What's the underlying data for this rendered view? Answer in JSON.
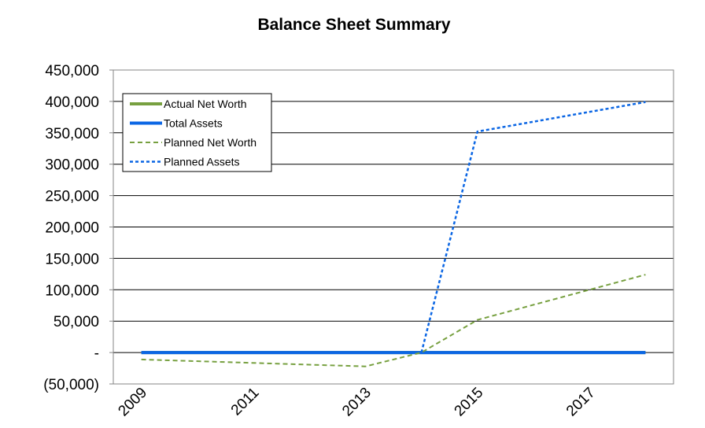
{
  "chart_data": {
    "type": "line",
    "title": "Balance Sheet Summary",
    "xlabel": "",
    "ylabel": "",
    "x": [
      2009,
      2010,
      2011,
      2012,
      2013,
      2014,
      2015,
      2016,
      2017,
      2018
    ],
    "x_tick_labels": [
      "2009",
      "2011",
      "2013",
      "2015",
      "2017"
    ],
    "y_tick_labels": [
      "(50,000)",
      "-",
      "50,000",
      "100,000",
      "150,000",
      "200,000",
      "250,000",
      "300,000",
      "350,000",
      "400,000",
      "450,000"
    ],
    "ylim": [
      -50000,
      450000
    ],
    "grid": "horizontal",
    "legend_position": "top-left",
    "series": [
      {
        "name": "Actual Net Worth",
        "color": "#77a040",
        "style": "solid-thick",
        "x": [
          2009,
          2010,
          2011,
          2012,
          2013,
          2014,
          2015,
          2016,
          2017,
          2018
        ],
        "values": [
          0,
          0,
          0,
          0,
          0,
          0,
          0,
          0,
          0,
          0
        ]
      },
      {
        "name": "Total Assets",
        "color": "#0b66e4",
        "style": "solid-thick",
        "x": [
          2009,
          2010,
          2011,
          2012,
          2013,
          2014,
          2015,
          2016,
          2017,
          2018
        ],
        "values": [
          0,
          0,
          0,
          0,
          0,
          0,
          0,
          0,
          0,
          0
        ]
      },
      {
        "name": "Planned Net Worth",
        "color": "#77a040",
        "style": "dashed",
        "x": [
          2009,
          2013,
          2014,
          2015,
          2018
        ],
        "values": [
          -11000,
          -22000,
          0,
          52000,
          124000
        ]
      },
      {
        "name": "Planned Assets",
        "color": "#0b66e4",
        "style": "dotted",
        "x": [
          2014,
          2015,
          2018
        ],
        "values": [
          0,
          352000,
          399000
        ]
      }
    ]
  }
}
